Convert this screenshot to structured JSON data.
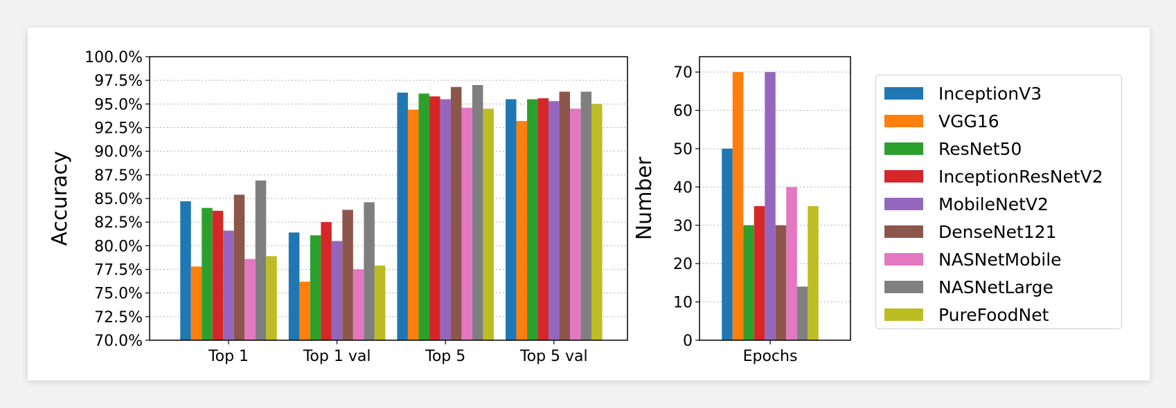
{
  "chart_data": [
    {
      "type": "bar",
      "ylabel": "Accuracy",
      "xlabel": "",
      "categories": [
        "Top 1",
        "Top 1 val",
        "Top 5",
        "Top 5 val"
      ],
      "ylim": [
        70.0,
        100.0
      ],
      "yticks": [
        "70.0%",
        "72.5%",
        "75.0%",
        "77.5%",
        "80.0%",
        "82.5%",
        "85.0%",
        "87.5%",
        "90.0%",
        "92.5%",
        "95.0%",
        "97.5%",
        "100.0%"
      ],
      "grid": "horizontal dotted",
      "series": [
        {
          "name": "InceptionV3",
          "color": "#1f77b4",
          "values": [
            84.7,
            81.4,
            96.2,
            95.5
          ]
        },
        {
          "name": "VGG16",
          "color": "#ff7f0e",
          "values": [
            77.8,
            76.2,
            94.4,
            93.2
          ]
        },
        {
          "name": "ResNet50",
          "color": "#2ca02c",
          "values": [
            84.0,
            81.1,
            96.1,
            95.5
          ]
        },
        {
          "name": "InceptionResNetV2",
          "color": "#d62728",
          "values": [
            83.7,
            82.5,
            95.8,
            95.6
          ]
        },
        {
          "name": "MobileNetV2",
          "color": "#9467bd",
          "values": [
            81.6,
            80.5,
            95.5,
            95.3
          ]
        },
        {
          "name": "DenseNet121",
          "color": "#8c564b",
          "values": [
            85.4,
            83.8,
            96.8,
            96.3
          ]
        },
        {
          "name": "NASNetMobile",
          "color": "#e377c2",
          "values": [
            78.6,
            77.5,
            94.6,
            94.5
          ]
        },
        {
          "name": "NASNetLarge",
          "color": "#7f7f7f",
          "values": [
            86.9,
            84.6,
            97.0,
            96.3
          ]
        },
        {
          "name": "PureFoodNet",
          "color": "#bcbd22",
          "values": [
            78.9,
            77.9,
            94.5,
            95.0
          ]
        }
      ]
    },
    {
      "type": "bar",
      "ylabel": "Number",
      "xlabel": "",
      "categories": [
        "Epochs"
      ],
      "ylim": [
        0,
        74
      ],
      "yticks": [
        "0",
        "10",
        "20",
        "30",
        "40",
        "50",
        "60",
        "70"
      ],
      "grid": "horizontal dotted",
      "series": [
        {
          "name": "InceptionV3",
          "color": "#1f77b4",
          "values": [
            50
          ]
        },
        {
          "name": "VGG16",
          "color": "#ff7f0e",
          "values": [
            70
          ]
        },
        {
          "name": "ResNet50",
          "color": "#2ca02c",
          "values": [
            30
          ]
        },
        {
          "name": "InceptionResNetV2",
          "color": "#d62728",
          "values": [
            35
          ]
        },
        {
          "name": "MobileNetV2",
          "color": "#9467bd",
          "values": [
            70
          ]
        },
        {
          "name": "DenseNet121",
          "color": "#8c564b",
          "values": [
            30
          ]
        },
        {
          "name": "NASNetMobile",
          "color": "#e377c2",
          "values": [
            40
          ]
        },
        {
          "name": "NASNetLarge",
          "color": "#7f7f7f",
          "values": [
            14
          ]
        },
        {
          "name": "PureFoodNet",
          "color": "#bcbd22",
          "values": [
            35
          ]
        }
      ]
    }
  ],
  "legend": {
    "placement": "right",
    "items": [
      "InceptionV3",
      "VGG16",
      "ResNet50",
      "InceptionResNetV2",
      "MobileNetV2",
      "DenseNet121",
      "NASNetMobile",
      "NASNetLarge",
      "PureFoodNet"
    ]
  }
}
